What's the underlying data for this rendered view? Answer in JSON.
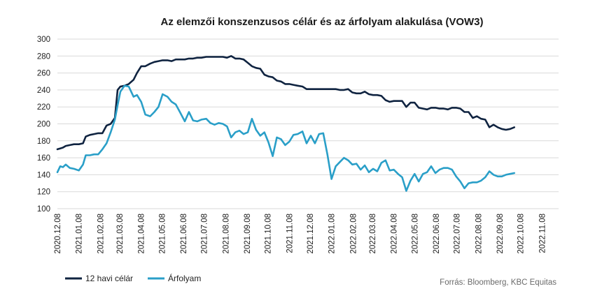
{
  "chart_data": {
    "type": "line",
    "title": "Az elemzői konszenzusos célár és az árfolyam alakulása (VOW3)",
    "xlabel": "",
    "ylabel": "",
    "ylim": [
      100,
      300
    ],
    "yticks": [
      "100",
      "120",
      "140",
      "160",
      "180",
      "200",
      "220",
      "240",
      "260",
      "280",
      "300"
    ],
    "grid": true,
    "legend_position": "bottom-left",
    "x_tick_labels": [
      "2020.12.08",
      "2021.01.08",
      "2021.02.08",
      "2021.03.08",
      "2021.04.08",
      "2021.05.08",
      "2021.06.08",
      "2021.07.08",
      "2021.08.08",
      "2021.09.08",
      "2021.10.08",
      "2021.11.08",
      "2021.12.08",
      "2022.01.08",
      "2022.02.08",
      "2022.03.08",
      "2022.04.08",
      "2022.05.08",
      "2022.06.08",
      "2022.07.08",
      "2022.08.08",
      "2022.09.08",
      "2022.10.08",
      "2022.11.08"
    ],
    "x_start": "2020.12.08",
    "x_end": "2022.12.02",
    "series": [
      {
        "name": "12 havi célár",
        "color": "#0f2340",
        "points": [
          [
            "2020.12.08",
            170
          ],
          [
            "2020.12.12",
            171
          ],
          [
            "2020.12.16",
            172
          ],
          [
            "2020.12.20",
            174
          ],
          [
            "2020.12.26",
            175
          ],
          [
            "2021.01.01",
            176
          ],
          [
            "2021.01.08",
            176
          ],
          [
            "2021.01.14",
            177
          ],
          [
            "2021.01.18",
            185
          ],
          [
            "2021.01.24",
            187
          ],
          [
            "2021.01.30",
            188
          ],
          [
            "2021.02.05",
            189
          ],
          [
            "2021.02.11",
            189
          ],
          [
            "2021.02.17",
            198
          ],
          [
            "2021.02.23",
            200
          ],
          [
            "2021.03.01",
            207
          ],
          [
            "2021.03.05",
            240
          ],
          [
            "2021.03.09",
            244
          ],
          [
            "2021.03.15",
            245
          ],
          [
            "2021.03.21",
            247
          ],
          [
            "2021.03.28",
            252
          ],
          [
            "2021.04.02",
            260
          ],
          [
            "2021.04.08",
            268
          ],
          [
            "2021.04.14",
            268
          ],
          [
            "2021.04.21",
            271
          ],
          [
            "2021.04.27",
            273
          ],
          [
            "2021.05.03",
            274
          ],
          [
            "2021.05.09",
            275
          ],
          [
            "2021.05.16",
            275
          ],
          [
            "2021.05.22",
            274
          ],
          [
            "2021.05.28",
            276
          ],
          [
            "2021.06.03",
            276
          ],
          [
            "2021.06.10",
            276
          ],
          [
            "2021.06.16",
            277
          ],
          [
            "2021.06.22",
            277
          ],
          [
            "2021.06.28",
            278
          ],
          [
            "2021.07.04",
            278
          ],
          [
            "2021.07.11",
            279
          ],
          [
            "2021.07.17",
            279
          ],
          [
            "2021.07.23",
            279
          ],
          [
            "2021.07.29",
            279
          ],
          [
            "2021.08.04",
            279
          ],
          [
            "2021.08.10",
            278
          ],
          [
            "2021.08.16",
            280
          ],
          [
            "2021.08.22",
            277
          ],
          [
            "2021.08.28",
            277
          ],
          [
            "2021.09.03",
            276
          ],
          [
            "2021.09.09",
            272
          ],
          [
            "2021.09.15",
            268
          ],
          [
            "2021.09.21",
            266
          ],
          [
            "2021.09.27",
            265
          ],
          [
            "2021.10.03",
            258
          ],
          [
            "2021.10.09",
            256
          ],
          [
            "2021.10.15",
            255
          ],
          [
            "2021.10.21",
            251
          ],
          [
            "2021.10.27",
            250
          ],
          [
            "2021.11.02",
            247
          ],
          [
            "2021.11.08",
            247
          ],
          [
            "2021.11.14",
            246
          ],
          [
            "2021.11.20",
            245
          ],
          [
            "2021.11.27",
            244
          ],
          [
            "2021.12.03",
            241
          ],
          [
            "2021.12.09",
            241
          ],
          [
            "2021.12.15",
            241
          ],
          [
            "2021.12.21",
            241
          ],
          [
            "2021.12.27",
            241
          ],
          [
            "2022.01.02",
            241
          ],
          [
            "2022.01.08",
            241
          ],
          [
            "2022.01.14",
            241
          ],
          [
            "2022.01.20",
            240
          ],
          [
            "2022.01.26",
            240
          ],
          [
            "2022.02.01",
            241
          ],
          [
            "2022.02.07",
            237
          ],
          [
            "2022.02.13",
            236
          ],
          [
            "2022.02.19",
            236
          ],
          [
            "2022.02.25",
            238
          ],
          [
            "2022.03.03",
            235
          ],
          [
            "2022.03.09",
            234
          ],
          [
            "2022.03.15",
            234
          ],
          [
            "2022.03.21",
            233
          ],
          [
            "2022.03.27",
            228
          ],
          [
            "2022.04.02",
            226
          ],
          [
            "2022.04.08",
            227
          ],
          [
            "2022.04.14",
            227
          ],
          [
            "2022.04.20",
            227
          ],
          [
            "2022.04.26",
            220
          ],
          [
            "2022.05.02",
            225
          ],
          [
            "2022.05.08",
            225
          ],
          [
            "2022.05.14",
            219
          ],
          [
            "2022.05.20",
            218
          ],
          [
            "2022.05.26",
            217
          ],
          [
            "2022.06.01",
            219
          ],
          [
            "2022.06.07",
            219
          ],
          [
            "2022.06.13",
            218
          ],
          [
            "2022.06.19",
            218
          ],
          [
            "2022.06.25",
            217
          ],
          [
            "2022.07.01",
            219
          ],
          [
            "2022.07.07",
            219
          ],
          [
            "2022.07.13",
            218
          ],
          [
            "2022.07.19",
            214
          ],
          [
            "2022.07.25",
            214
          ],
          [
            "2022.07.31",
            207
          ],
          [
            "2022.08.06",
            209
          ],
          [
            "2022.08.12",
            206
          ],
          [
            "2022.08.18",
            205
          ],
          [
            "2022.08.24",
            196
          ],
          [
            "2022.08.30",
            199
          ],
          [
            "2022.09.05",
            196
          ],
          [
            "2022.09.11",
            194
          ],
          [
            "2022.09.17",
            193
          ],
          [
            "2022.09.23",
            194
          ],
          [
            "2022.09.29",
            196
          ]
        ]
      },
      {
        "name": "Árfolyam",
        "color": "#2a9fc8",
        "points": [
          [
            "2020.12.08",
            143
          ],
          [
            "2020.12.12",
            150
          ],
          [
            "2020.12.16",
            149
          ],
          [
            "2020.12.20",
            152
          ],
          [
            "2020.12.26",
            148
          ],
          [
            "2021.01.01",
            147
          ],
          [
            "2021.01.08",
            145
          ],
          [
            "2021.01.14",
            152
          ],
          [
            "2021.01.18",
            163
          ],
          [
            "2021.01.24",
            163
          ],
          [
            "2021.01.30",
            164
          ],
          [
            "2021.02.05",
            164
          ],
          [
            "2021.02.11",
            170
          ],
          [
            "2021.02.17",
            177
          ],
          [
            "2021.02.23",
            190
          ],
          [
            "2021.03.01",
            205
          ],
          [
            "2021.03.05",
            222
          ],
          [
            "2021.03.09",
            238
          ],
          [
            "2021.03.15",
            245
          ],
          [
            "2021.03.21",
            244
          ],
          [
            "2021.03.28",
            232
          ],
          [
            "2021.04.02",
            234
          ],
          [
            "2021.04.08",
            226
          ],
          [
            "2021.04.14",
            211
          ],
          [
            "2021.04.21",
            209
          ],
          [
            "2021.04.27",
            214
          ],
          [
            "2021.05.03",
            220
          ],
          [
            "2021.05.09",
            235
          ],
          [
            "2021.05.16",
            232
          ],
          [
            "2021.05.22",
            226
          ],
          [
            "2021.05.28",
            223
          ],
          [
            "2021.06.03",
            214
          ],
          [
            "2021.06.10",
            203
          ],
          [
            "2021.06.16",
            214
          ],
          [
            "2021.06.22",
            204
          ],
          [
            "2021.06.28",
            203
          ],
          [
            "2021.07.04",
            205
          ],
          [
            "2021.07.11",
            206
          ],
          [
            "2021.07.17",
            201
          ],
          [
            "2021.07.23",
            199
          ],
          [
            "2021.07.29",
            201
          ],
          [
            "2021.08.04",
            200
          ],
          [
            "2021.08.10",
            197
          ],
          [
            "2021.08.16",
            184
          ],
          [
            "2021.08.22",
            190
          ],
          [
            "2021.08.28",
            192
          ],
          [
            "2021.09.03",
            188
          ],
          [
            "2021.09.09",
            190
          ],
          [
            "2021.09.15",
            206
          ],
          [
            "2021.09.21",
            193
          ],
          [
            "2021.09.27",
            186
          ],
          [
            "2021.10.03",
            190
          ],
          [
            "2021.10.09",
            178
          ],
          [
            "2021.10.15",
            162
          ],
          [
            "2021.10.21",
            184
          ],
          [
            "2021.10.27",
            182
          ],
          [
            "2021.11.02",
            175
          ],
          [
            "2021.11.08",
            179
          ],
          [
            "2021.11.14",
            187
          ],
          [
            "2021.11.20",
            188
          ],
          [
            "2021.11.27",
            191
          ],
          [
            "2021.12.03",
            177
          ],
          [
            "2021.12.09",
            186
          ],
          [
            "2021.12.15",
            177
          ],
          [
            "2021.12.21",
            188
          ],
          [
            "2021.12.27",
            189
          ],
          [
            "2022.01.02",
            164
          ],
          [
            "2022.01.08",
            135
          ],
          [
            "2022.01.14",
            150
          ],
          [
            "2022.01.20",
            155
          ],
          [
            "2022.01.26",
            160
          ],
          [
            "2022.02.01",
            157
          ],
          [
            "2022.02.07",
            152
          ],
          [
            "2022.02.13",
            153
          ],
          [
            "2022.02.19",
            146
          ],
          [
            "2022.02.25",
            151
          ],
          [
            "2022.03.03",
            143
          ],
          [
            "2022.03.09",
            147
          ],
          [
            "2022.03.15",
            144
          ],
          [
            "2022.03.21",
            154
          ],
          [
            "2022.03.27",
            157
          ],
          [
            "2022.04.02",
            145
          ],
          [
            "2022.04.08",
            146
          ],
          [
            "2022.04.14",
            141
          ],
          [
            "2022.04.20",
            137
          ],
          [
            "2022.04.26",
            121
          ],
          [
            "2022.05.02",
            133
          ],
          [
            "2022.05.08",
            141
          ],
          [
            "2022.05.14",
            132
          ],
          [
            "2022.05.20",
            141
          ],
          [
            "2022.05.26",
            143
          ],
          [
            "2022.06.01",
            150
          ],
          [
            "2022.06.07",
            142
          ],
          [
            "2022.06.13",
            146
          ],
          [
            "2022.06.19",
            148
          ],
          [
            "2022.06.25",
            148
          ],
          [
            "2022.07.01",
            146
          ],
          [
            "2022.07.07",
            138
          ],
          [
            "2022.07.13",
            132
          ],
          [
            "2022.07.19",
            124
          ],
          [
            "2022.07.25",
            130
          ],
          [
            "2022.07.31",
            131
          ],
          [
            "2022.08.06",
            131
          ],
          [
            "2022.08.12",
            133
          ],
          [
            "2022.08.18",
            137
          ],
          [
            "2022.08.24",
            144
          ],
          [
            "2022.08.30",
            140
          ],
          [
            "2022.09.05",
            138
          ],
          [
            "2022.09.11",
            138
          ],
          [
            "2022.09.17",
            140
          ],
          [
            "2022.09.23",
            141
          ],
          [
            "2022.09.29",
            142
          ]
        ]
      }
    ],
    "source": "Forrás: Bloomberg,  KBC Equitas"
  }
}
